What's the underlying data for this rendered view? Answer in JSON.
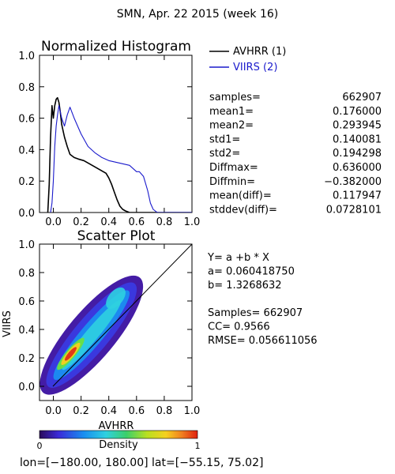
{
  "header": {
    "title": "SMN,  Apr. 22 2015 (week 16)"
  },
  "colors": {
    "avhrr": "#000000",
    "viirs": "#1a1acc",
    "axis": "#000000"
  },
  "stats_block": {
    "labels": [
      "samples=",
      "mean1=",
      "mean2=",
      "std1=",
      "std2=",
      "Diffmax=",
      "Diffmin=",
      "mean(diff)=",
      "stddev(diff)="
    ],
    "values": [
      "662907",
      "0.176000",
      "0.293945",
      "0.140081",
      "0.194298",
      "0.636000",
      "−0.382000",
      "0.117947",
      "0.0728101"
    ]
  },
  "regression_block": {
    "lines": [
      "Y= a +b * X",
      "a= 0.060418750",
      "b= 1.3268632",
      "",
      "Samples= 662907",
      "CC=  0.9566",
      "RMSE= 0.056611056"
    ]
  },
  "colorbar": {
    "label": "Density",
    "min_label": "0",
    "max_label": "1"
  },
  "footer": {
    "text": "lon=[−180.00, 180.00] lat=[−55.15, 75.02]"
  },
  "chart_data": [
    {
      "type": "line",
      "title": "Normalized Histogram",
      "xlim": [
        -0.1,
        1.0
      ],
      "ylim": [
        0.0,
        1.0
      ],
      "xticks": [
        "0.0",
        "0.2",
        "0.4",
        "0.6",
        "0.8",
        "1.0"
      ],
      "yticks": [
        "0.0",
        "0.2",
        "0.4",
        "0.6",
        "0.8",
        "1.0"
      ],
      "legend_position": "outside-top-right",
      "series": [
        {
          "name": "AVHRR (1)",
          "color": "#000000",
          "x": [
            -0.04,
            -0.03,
            -0.02,
            -0.01,
            0.0,
            0.01,
            0.02,
            0.03,
            0.04,
            0.05,
            0.06,
            0.08,
            0.1,
            0.12,
            0.15,
            0.18,
            0.22,
            0.26,
            0.3,
            0.34,
            0.38,
            0.4,
            0.42,
            0.44,
            0.46,
            0.48,
            0.5,
            0.52,
            0.55,
            0.6,
            0.7,
            1.0
          ],
          "y": [
            0.0,
            0.18,
            0.48,
            0.68,
            0.6,
            0.68,
            0.72,
            0.73,
            0.7,
            0.64,
            0.56,
            0.48,
            0.42,
            0.37,
            0.35,
            0.34,
            0.33,
            0.31,
            0.29,
            0.27,
            0.25,
            0.22,
            0.18,
            0.13,
            0.08,
            0.04,
            0.02,
            0.01,
            0.0,
            0.0,
            0.0,
            0.0
          ]
        },
        {
          "name": "VIIRS (2)",
          "color": "#1a1acc",
          "x": [
            -0.02,
            -0.01,
            0.0,
            0.01,
            0.02,
            0.03,
            0.04,
            0.06,
            0.08,
            0.1,
            0.12,
            0.15,
            0.2,
            0.25,
            0.3,
            0.35,
            0.4,
            0.45,
            0.5,
            0.55,
            0.6,
            0.62,
            0.65,
            0.68,
            0.7,
            0.72,
            0.75,
            0.8,
            1.0
          ],
          "y": [
            0.0,
            0.06,
            0.2,
            0.42,
            0.55,
            0.62,
            0.68,
            0.6,
            0.55,
            0.62,
            0.67,
            0.6,
            0.5,
            0.42,
            0.38,
            0.35,
            0.33,
            0.32,
            0.31,
            0.3,
            0.26,
            0.26,
            0.23,
            0.14,
            0.06,
            0.02,
            0.0,
            0.0,
            0.0
          ]
        }
      ]
    },
    {
      "type": "scatter",
      "title": "Scatter Plot",
      "xlabel": "AVHRR",
      "ylabel": "VIIRS",
      "xlim": [
        -0.1,
        1.0
      ],
      "ylim": [
        -0.1,
        1.0
      ],
      "xticks": [
        "0.0",
        "0.2",
        "0.4",
        "0.6",
        "0.8",
        "1.0"
      ],
      "yticks": [
        "0.0",
        "0.2",
        "0.4",
        "0.6",
        "0.8",
        "1.0"
      ],
      "one_to_one_line": true,
      "density_ridge": {
        "x": [
          0.0,
          0.05,
          0.1,
          0.15,
          0.2,
          0.25,
          0.3,
          0.35,
          0.4,
          0.45,
          0.5,
          0.55
        ],
        "y": [
          0.04,
          0.12,
          0.19,
          0.27,
          0.34,
          0.41,
          0.48,
          0.53,
          0.58,
          0.62,
          0.65,
          0.68
        ]
      }
    }
  ]
}
